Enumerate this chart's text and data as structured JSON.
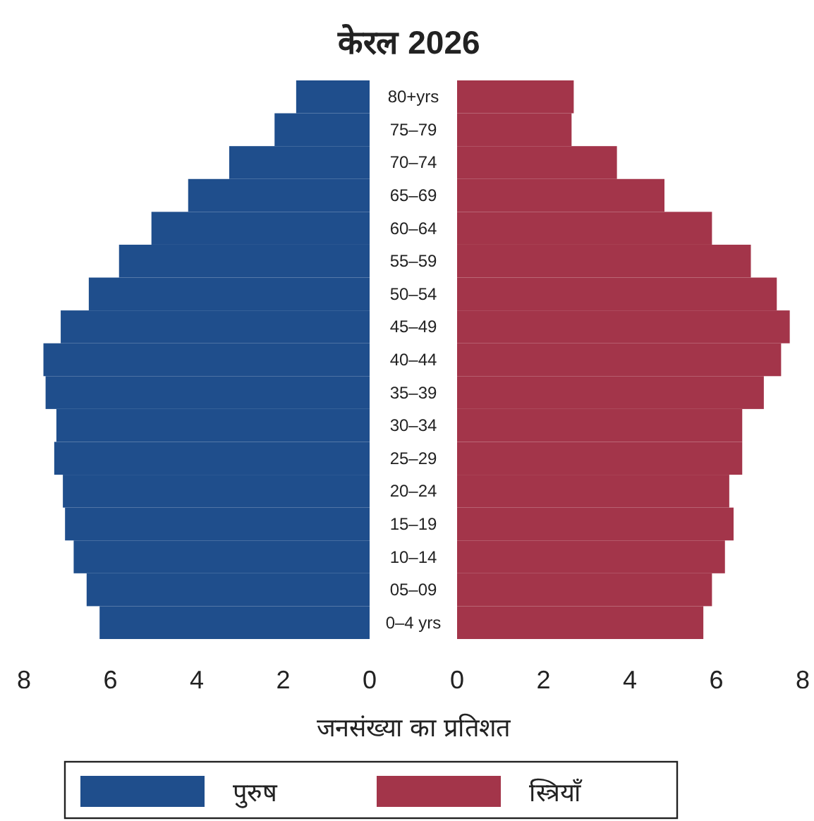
{
  "chart_data": [
    {
      "type": "bar",
      "orientation": "horizontal",
      "title": "केरल 2026",
      "xlabel": "जनसंख्या का प्रतिशत",
      "legend": "bottom",
      "categories": [
        "80+yrs",
        "75–79",
        "70–74",
        "65–69",
        "60–64",
        "55–59",
        "50–54",
        "45–49",
        "40–44",
        "35–39",
        "30–34",
        "25–29",
        "20–24",
        "15–19",
        "10–14",
        "05–09",
        "0–4 yrs"
      ],
      "xlim": [
        8,
        0
      ],
      "xticks": [
        8,
        6,
        4,
        2,
        0
      ],
      "series": [
        {
          "name": "पुरुष",
          "color": "#1f4e8c",
          "values": [
            1.7,
            2.2,
            3.25,
            4.2,
            5.05,
            5.8,
            6.5,
            7.15,
            7.55,
            7.5,
            7.25,
            7.3,
            7.1,
            7.05,
            6.85,
            6.55,
            6.25
          ]
        }
      ]
    },
    {
      "type": "bar",
      "orientation": "horizontal",
      "legend": "bottom",
      "tick_labels": "x",
      "categories": [
        null,
        null,
        null,
        null,
        null,
        null,
        null,
        null,
        null,
        null,
        null,
        null,
        null,
        null,
        null,
        null,
        null
      ],
      "xlim": [
        0,
        8
      ],
      "xticks": [
        0,
        2,
        4,
        6,
        8
      ],
      "series": [
        {
          "name": "स्त्रियाँ",
          "color": "#a3354a",
          "values": [
            2.7,
            2.65,
            3.7,
            4.8,
            5.9,
            6.8,
            7.4,
            7.7,
            7.5,
            7.1,
            6.6,
            6.6,
            6.3,
            6.4,
            6.2,
            5.9,
            5.7
          ]
        }
      ]
    }
  ]
}
